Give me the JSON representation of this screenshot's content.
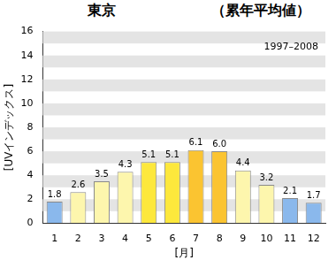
{
  "chart_data": {
    "type": "bar",
    "title": "東京",
    "subtitle": "（累年平均値）",
    "annotation": "1997–2008",
    "x_label": "[月]",
    "y_label": "[UVインデックス]",
    "categories": [
      "1",
      "2",
      "3",
      "4",
      "5",
      "6",
      "7",
      "8",
      "9",
      "10",
      "11",
      "12"
    ],
    "values": [
      1.8,
      2.6,
      3.5,
      4.3,
      5.1,
      5.1,
      6.1,
      6.0,
      4.4,
      3.2,
      2.1,
      1.7
    ],
    "value_labels": [
      "1.8",
      "2.6",
      "3.5",
      "4.3",
      "5.1",
      "5.1",
      "6.1",
      "6.0",
      "4.4",
      "3.2",
      "2.1",
      "1.7"
    ],
    "colors": [
      "#8ab8ec",
      "#fdf6ad",
      "#fdf6ad",
      "#fdf6ad",
      "#fde83c",
      "#fde83c",
      "#fbc431",
      "#fbc431",
      "#fdf6ad",
      "#fdf6ad",
      "#8ab8ec",
      "#8ab8ec"
    ],
    "ylim": [
      0,
      16
    ],
    "yticks": [
      0,
      2,
      4,
      6,
      8,
      10,
      12,
      14,
      16
    ],
    "grid": true,
    "data_labels": true
  }
}
